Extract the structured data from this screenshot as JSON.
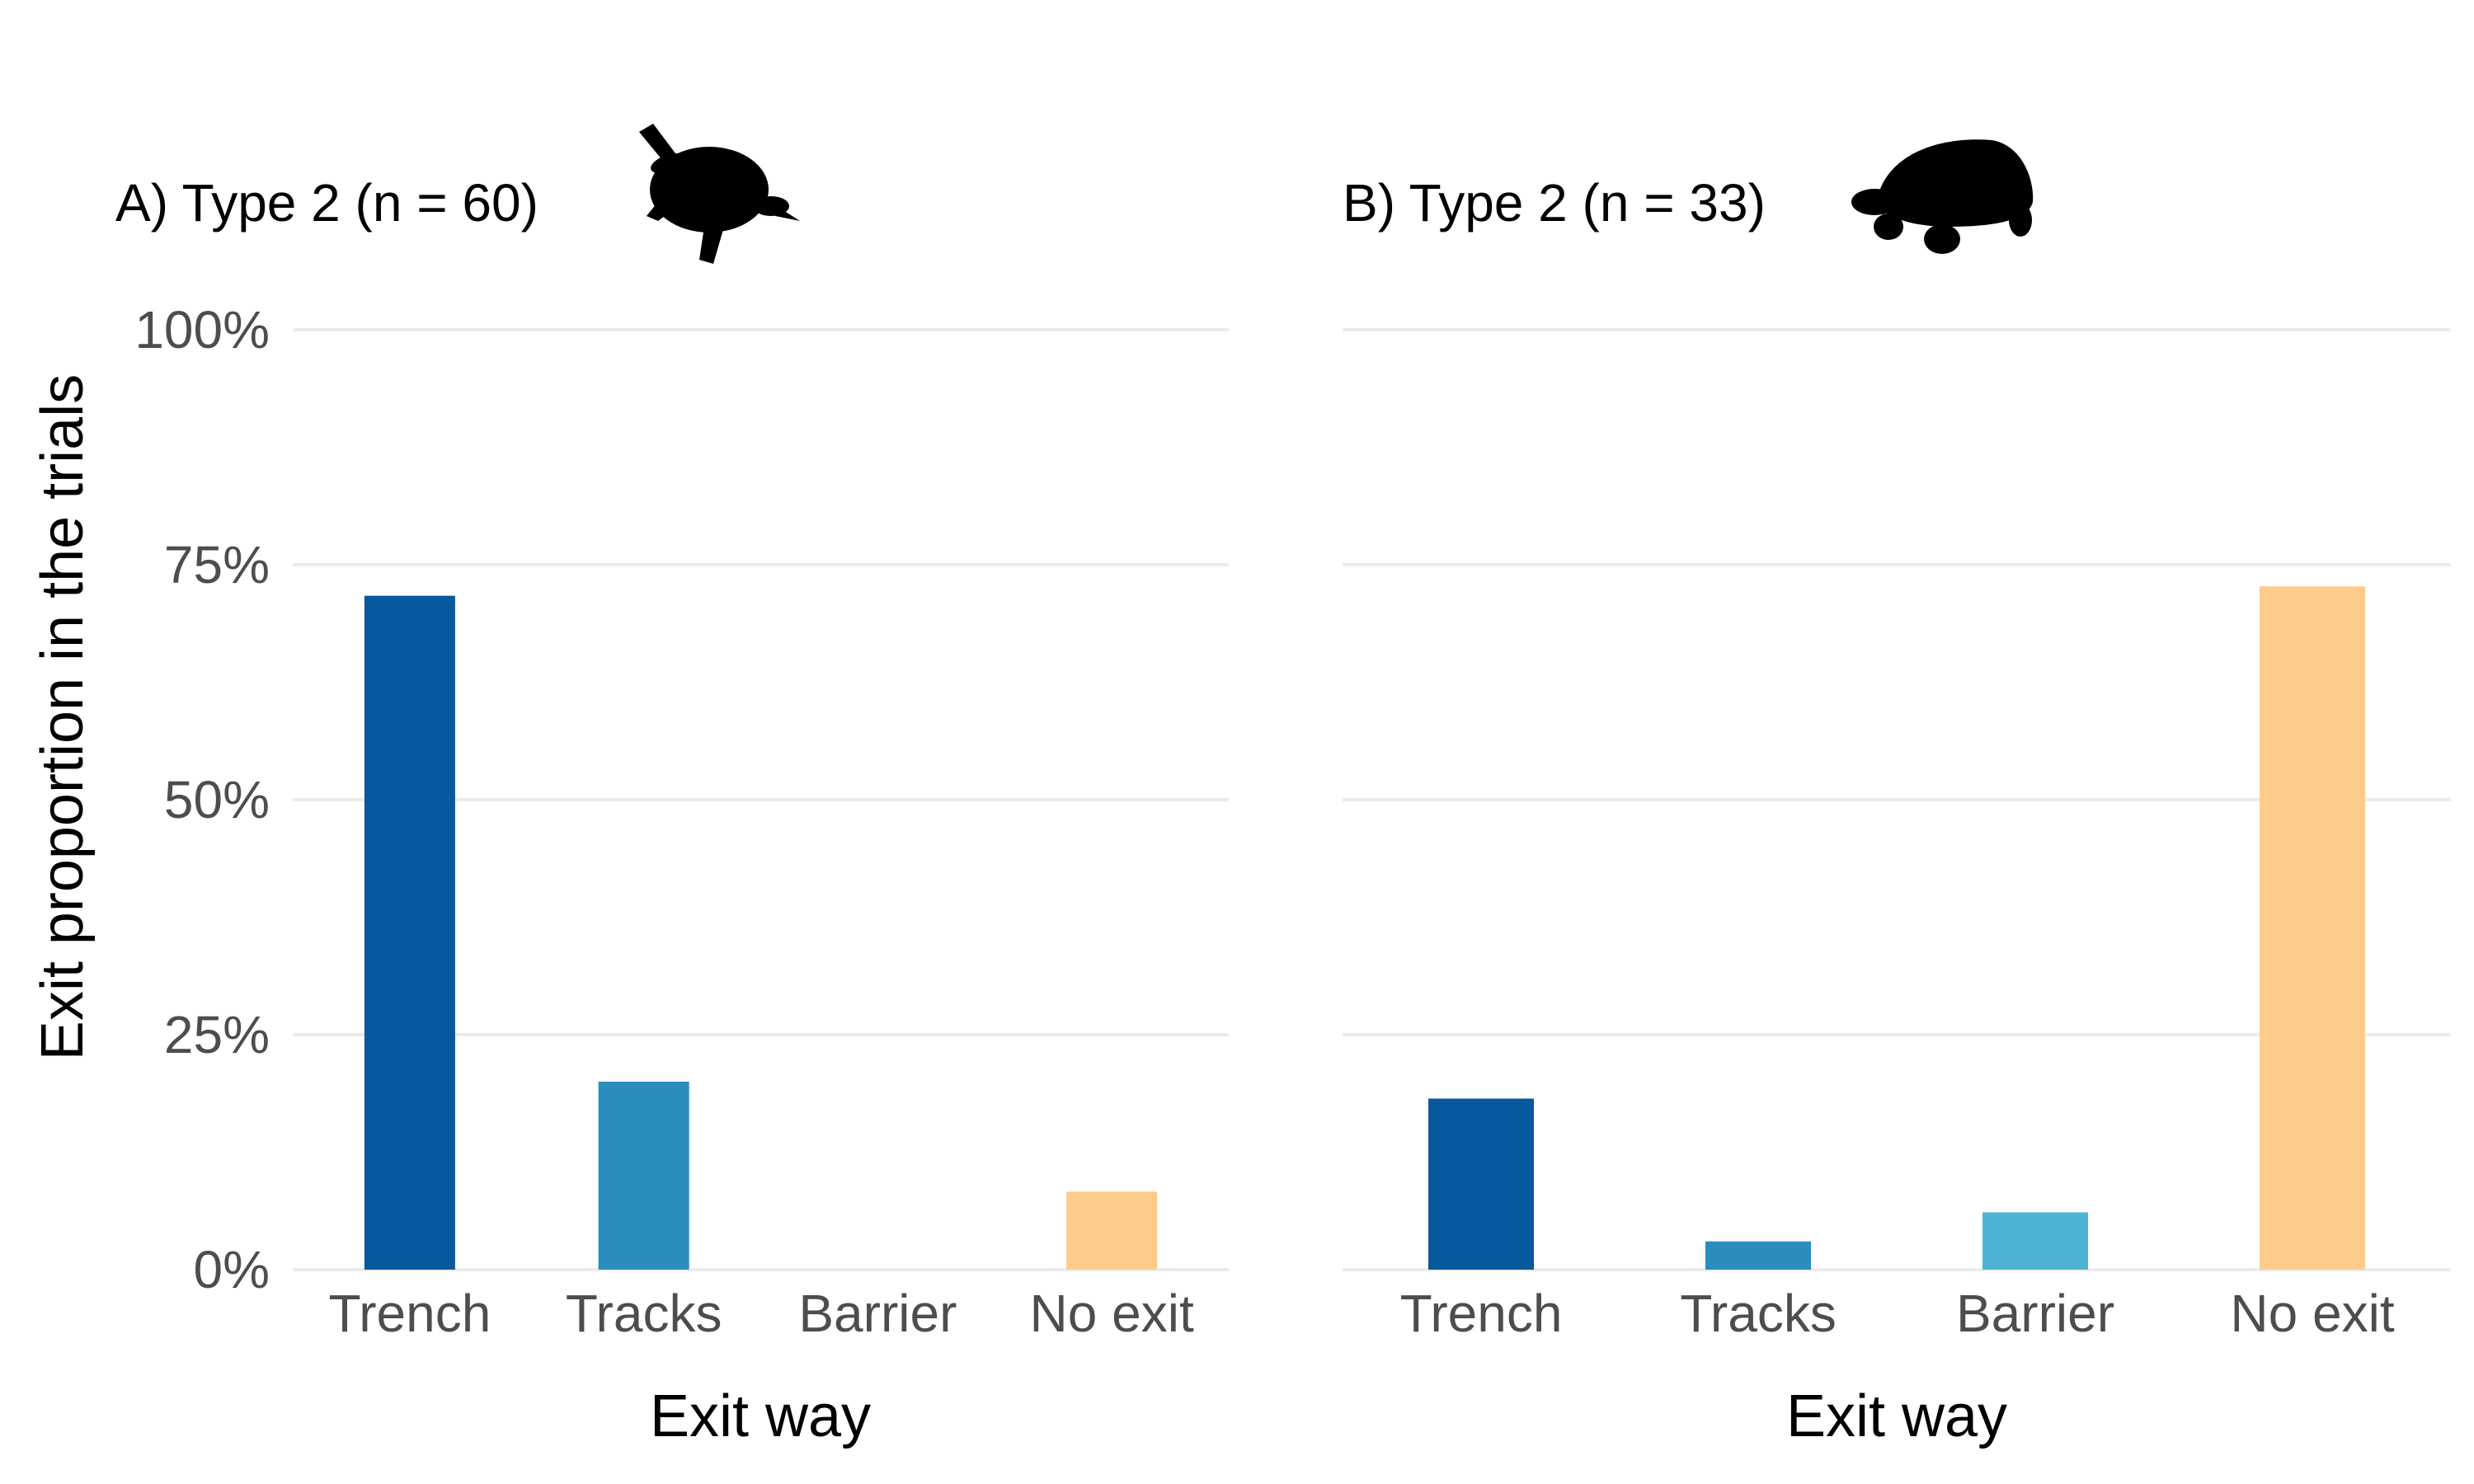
{
  "ylabel": "Exit proportion in the trials",
  "chart_data": [
    {
      "type": "bar",
      "title": "A) Type 2 (n = 60)",
      "icon": "turtle-icon",
      "xlabel": "Exit way",
      "ylabel": "Exit proportion in the trials",
      "categories": [
        "Trench",
        "Tracks",
        "Barrier",
        "No exit"
      ],
      "values": [
        0.717,
        0.2,
        0.0,
        0.083
      ],
      "colors": [
        "#08589e",
        "#2b8cbe",
        "#4eb3d3",
        "#fdcc8a"
      ],
      "ylim": [
        0,
        1
      ],
      "yticks": [
        0,
        0.25,
        0.5,
        0.75,
        1
      ],
      "ytick_labels": [
        "0%",
        "25%",
        "50%",
        "75%",
        "100%"
      ],
      "grid": true
    },
    {
      "type": "bar",
      "title": "B) Type 2 (n = 33)",
      "icon": "tortoise-icon",
      "xlabel": "Exit way",
      "ylabel": "Exit proportion in the trials",
      "categories": [
        "Trench",
        "Tracks",
        "Barrier",
        "No exit"
      ],
      "values": [
        0.182,
        0.03,
        0.061,
        0.727
      ],
      "colors": [
        "#08589e",
        "#2b8cbe",
        "#4eb3d3",
        "#fdcc8a"
      ],
      "ylim": [
        0,
        1
      ],
      "yticks": [
        0,
        0.25,
        0.5,
        0.75,
        1
      ],
      "ytick_labels": [
        "0%",
        "25%",
        "50%",
        "75%",
        "100%"
      ],
      "grid": true
    }
  ]
}
